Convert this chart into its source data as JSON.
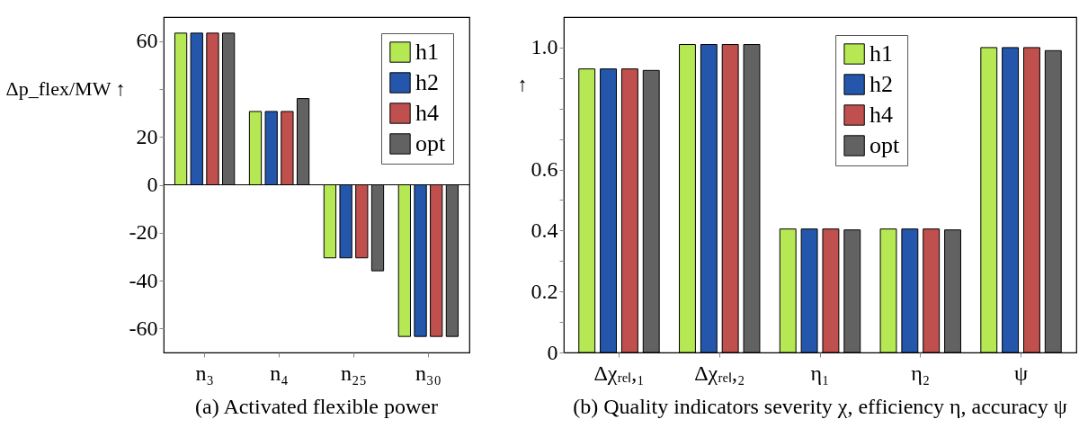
{
  "chart_data": [
    {
      "type": "bar",
      "ylabel": "Δp_flex/MW ↑",
      "categories": [
        "n₃",
        "n₄",
        "n₂₅",
        "n₃₀"
      ],
      "ylim": [
        -70,
        70
      ],
      "yticks": [
        -60,
        -40,
        -20,
        0,
        20,
        {
          "value": 40,
          "label": null
        },
        60
      ],
      "legend": "top right",
      "grid": false,
      "ref_lines": [
        {
          "axis": "y",
          "value": 0,
          "color": "#000000"
        }
      ],
      "annotations": [
        "(a) Activated flexible power"
      ],
      "series": [
        {
          "name": "h1",
          "color": "#b5e853",
          "values": [
            63.3,
            30.6,
            -30.5,
            -63.3
          ]
        },
        {
          "name": "h2",
          "color": "#2457ab",
          "values": [
            63.3,
            30.6,
            -30.5,
            -63.3
          ]
        },
        {
          "name": "h4",
          "color": "#c0504d",
          "values": [
            63.3,
            30.6,
            -30.5,
            -63.3
          ]
        },
        {
          "name": "opt",
          "color": "#626262",
          "values": [
            63.3,
            36,
            -35.9,
            -63.3
          ]
        }
      ]
    },
    {
      "type": "bar",
      "ylabel": "↑",
      "categories": [
        "Δχᵣₑₗ,₁",
        "Δχᵣₑₗ,₂",
        "η₁",
        "η₂",
        "ψ"
      ],
      "ylim": [
        0,
        1.1
      ],
      "yticks": [
        0,
        {
          "value": 0.1,
          "label": null
        },
        0.2,
        {
          "value": 0.3,
          "label": null
        },
        0.4,
        {
          "value": 0.5,
          "label": null
        },
        0.6,
        {
          "value": 0.7,
          "label": null
        },
        {
          "value": 0.8,
          "label": null
        },
        {
          "value": 0.9,
          "label": null
        },
        {
          "value": 1.0,
          "label": "1.0"
        }
      ],
      "legend": "top",
      "grid": false,
      "annotations": [
        "(b) Quality indicators severity χ, efficiency η, accuracy ψ"
      ],
      "series": [
        {
          "name": "h1",
          "color": "#b5e853",
          "values": [
            0.93,
            1.01,
            0.405,
            0.405,
            1.0
          ]
        },
        {
          "name": "h2",
          "color": "#2457ab",
          "values": [
            0.93,
            1.01,
            0.405,
            0.405,
            1.0
          ]
        },
        {
          "name": "h4",
          "color": "#c0504d",
          "values": [
            0.93,
            1.01,
            0.405,
            0.405,
            1.0
          ]
        },
        {
          "name": "opt",
          "color": "#626262",
          "values": [
            0.925,
            1.01,
            0.402,
            0.402,
            0.99
          ]
        }
      ]
    }
  ]
}
